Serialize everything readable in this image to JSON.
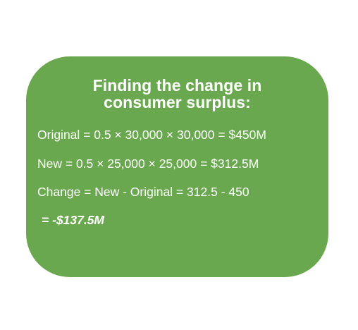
{
  "card": {
    "background_color": "#6aa84f",
    "title_line1": "Finding the change in",
    "title_line2": "consumer surplus:",
    "lines": [
      "Original = 0.5 × 30,000 × 30,000 = $450M",
      "New = 0.5 × 25,000 × 25,000 = $312.5M",
      "Change = New - Original = 312.5 - 450"
    ],
    "result": "= -$137.5M"
  }
}
